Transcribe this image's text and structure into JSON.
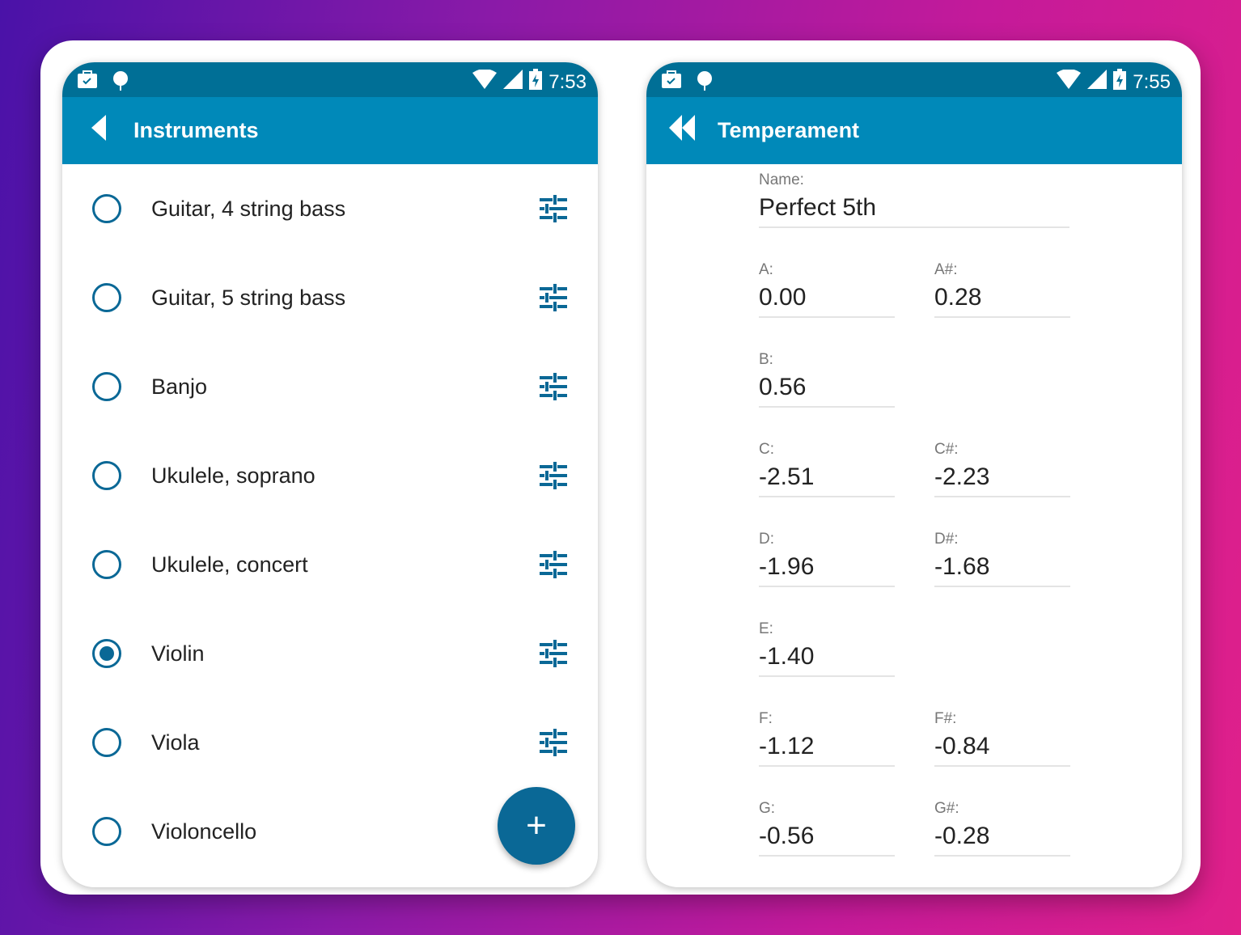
{
  "left": {
    "time": "7:53",
    "title": "Instruments",
    "items": [
      {
        "label": "Guitar, 4 string bass",
        "selected": false
      },
      {
        "label": "Guitar, 5 string bass",
        "selected": false
      },
      {
        "label": "Banjo",
        "selected": false
      },
      {
        "label": "Ukulele, soprano",
        "selected": false
      },
      {
        "label": "Ukulele, concert",
        "selected": false
      },
      {
        "label": "Violin",
        "selected": true
      },
      {
        "label": "Viola",
        "selected": false
      },
      {
        "label": "Violoncello",
        "selected": false
      }
    ],
    "fab": "+"
  },
  "right": {
    "time": "7:55",
    "title": "Temperament",
    "name_label": "Name:",
    "name_value": "Perfect 5th",
    "fields": [
      {
        "label": "A:",
        "value": "0.00"
      },
      {
        "label": "A#:",
        "value": "0.28"
      },
      {
        "label": "B:",
        "value": "0.56"
      },
      null,
      {
        "label": "C:",
        "value": "-2.51"
      },
      {
        "label": "C#:",
        "value": "-2.23"
      },
      {
        "label": "D:",
        "value": "-1.96"
      },
      {
        "label": "D#:",
        "value": "-1.68"
      },
      {
        "label": "E:",
        "value": "-1.40"
      },
      null,
      {
        "label": "F:",
        "value": "-1.12"
      },
      {
        "label": "F#:",
        "value": "-0.84"
      },
      {
        "label": "G:",
        "value": "-0.56"
      },
      {
        "label": "G#:",
        "value": "-0.28"
      }
    ]
  },
  "colors": {
    "status": "#006f96",
    "appbar": "#0089b9",
    "accent": "#0a6896"
  }
}
